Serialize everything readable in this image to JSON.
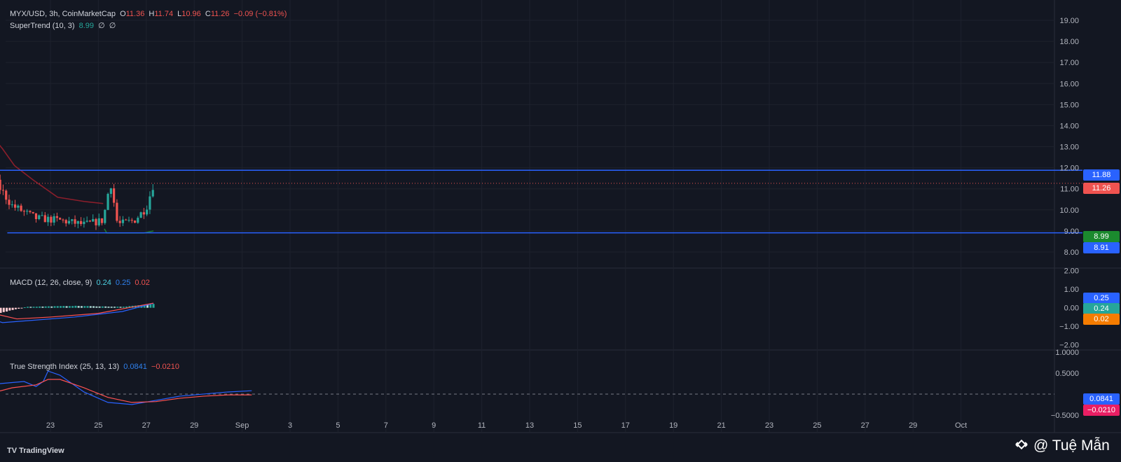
{
  "header": {
    "symbol": "MYX/USD, 3h, CoinMarketCap",
    "o_label": "O",
    "o": "11.36",
    "h_label": "H",
    "h": "11.74",
    "l_label": "L",
    "l": "10.96",
    "c_label": "C",
    "c": "11.26",
    "change": "−0.09 (−0.81%)"
  },
  "supertrend": {
    "label": "SuperTrend (10, 3)",
    "value": "8.99",
    "v2": "∅",
    "v3": "∅"
  },
  "macd": {
    "label": "MACD (12, 26, close, 9)",
    "v1": "0.24",
    "v2": "0.25",
    "v3": "0.02"
  },
  "tsi": {
    "label": "True Strength Index (25, 13, 13)",
    "v1": "0.0841",
    "v2": "−0.0210"
  },
  "tags": {
    "resistance": "11.88",
    "last": "11.26",
    "supertrend": "8.99",
    "support": "8.91",
    "macd_signal": "0.25",
    "macd_line": "0.24",
    "macd_hist": "0.02",
    "tsi_line": "0.0841",
    "tsi_signal": "−0.0210"
  },
  "colors": {
    "background": "#131722",
    "up": "#26a69a",
    "down": "#ef5350",
    "supertrend_up": "#1b7a2f",
    "supertrend_down": "#8b1e2b",
    "level": "#2962ff",
    "macd_line": "#2962ff",
    "signal_line": "#ff5252"
  },
  "branding": {
    "logo": "TradingView",
    "watermark": "@ Tuệ Mẫn"
  },
  "chart_data": [
    {
      "type": "candlestick",
      "title": "",
      "x": [
        "23",
        "25",
        "27",
        "29",
        "Sep",
        "3",
        "5",
        "7",
        "9",
        "11",
        "13",
        "15",
        "17",
        "19",
        "21",
        "23",
        "25",
        "27",
        "29",
        "Oct"
      ],
      "y_ticks": [
        "19.00",
        "18.00",
        "17.00",
        "16.00",
        "15.00",
        "14.00",
        "13.00",
        "12.00",
        "11.00",
        "10.00",
        "9.00",
        "8.00"
      ],
      "ylim": [
        7.3,
        19.5
      ],
      "close_path": [
        [
          9.2,
          7.5
        ],
        [
          9.8,
          17.2
        ],
        [
          10.4,
          15.5
        ],
        [
          11.0,
          18.6
        ],
        [
          11.4,
          12.4
        ],
        [
          11.7,
          11.6
        ],
        [
          12.3,
          18.2
        ],
        [
          13.0,
          14.2
        ],
        [
          14.0,
          11.0
        ],
        [
          15.0,
          10.6
        ],
        [
          16.0,
          10.8
        ],
        [
          16.8,
          11.2
        ],
        [
          17.1,
          14.5
        ],
        [
          17.6,
          17.9
        ],
        [
          18.0,
          16.5
        ],
        [
          18.6,
          17.6
        ],
        [
          19.2,
          14.8
        ],
        [
          19.9,
          12.2
        ],
        [
          20.6,
          11.5
        ],
        [
          21.4,
          10.2
        ],
        [
          22.4,
          9.6
        ],
        [
          23.4,
          9.5
        ],
        [
          24.4,
          9.3
        ],
        [
          25.2,
          9.5
        ],
        [
          25.5,
          11.4
        ],
        [
          25.8,
          9.3
        ],
        [
          26.5,
          9.5
        ],
        [
          27.0,
          10.1
        ],
        [
          27.3,
          11.26
        ]
      ],
      "supertrend": [
        {
          "dir": "up",
          "points": [
            [
              9.15,
              7.5
            ],
            [
              9.3,
              7.9
            ],
            [
              9.3,
              9.0
            ],
            [
              9.5,
              9.0
            ],
            [
              9.55,
              12.0
            ],
            [
              11.1,
              12.0
            ],
            [
              11.1,
              12.2
            ],
            [
              11.7,
              12.2
            ]
          ]
        },
        {
          "dir": "up",
          "points": [
            [
              12.2,
              11.6
            ],
            [
              12.35,
              11.6
            ],
            [
              12.45,
              11.0
            ],
            [
              12.6,
              11.0
            ],
            [
              12.7,
              11.2
            ],
            [
              14.0,
              11.2
            ]
          ]
        },
        {
          "dir": "down",
          "points": [
            [
              14.0,
              16.3
            ],
            [
              14.6,
              14.6
            ],
            [
              15.3,
              13.7
            ],
            [
              16.0,
              13.3
            ],
            [
              16.5,
              13.0
            ],
            [
              16.9,
              12.7
            ]
          ]
        },
        {
          "dir": "up",
          "points": [
            [
              16.75,
              10.0
            ],
            [
              16.95,
              12.0
            ],
            [
              17.3,
              13.0
            ],
            [
              17.6,
              14.6
            ],
            [
              18.2,
              14.7
            ],
            [
              18.8,
              14.7
            ]
          ]
        },
        {
          "dir": "down",
          "points": [
            [
              18.8,
              18.4
            ],
            [
              19.0,
              18.0
            ],
            [
              19.4,
              16.3
            ],
            [
              19.9,
              14.8
            ],
            [
              20.5,
              13.6
            ],
            [
              21.0,
              12.9
            ],
            [
              21.5,
              12.1
            ],
            [
              22.3,
              11.4
            ],
            [
              23.3,
              10.6
            ],
            [
              24.4,
              10.4
            ],
            [
              25.2,
              10.3
            ]
          ]
        },
        {
          "dir": "up",
          "points": [
            [
              25.25,
              9.1
            ],
            [
              25.35,
              8.9
            ],
            [
              26.9,
              8.9
            ],
            [
              27.3,
              9.0
            ]
          ]
        }
      ],
      "levels": [
        {
          "name": "resistance",
          "y": 11.88,
          "from": 20.2,
          "to": 31.0
        },
        {
          "name": "support",
          "y": 8.91,
          "from": 21.2,
          "to": 31.0
        }
      ],
      "last_price": 11.26
    },
    {
      "type": "line",
      "title": "MACD (12, 26, close, 9)",
      "y_ticks": [
        "2.00",
        "1.00",
        "0.00",
        "−1.00",
        "−2.00"
      ],
      "ylim": [
        -2.2,
        2.1
      ],
      "histogram_path": [
        [
          -1.2,
          0.02
        ],
        [
          7.5,
          0.05
        ],
        [
          8.5,
          0.3
        ],
        [
          9.0,
          1.0
        ],
        [
          9.4,
          0.85
        ],
        [
          10.0,
          0.3
        ],
        [
          10.5,
          -0.3
        ],
        [
          11.2,
          -0.6
        ],
        [
          11.6,
          -1.1
        ],
        [
          12.0,
          -0.7
        ],
        [
          12.4,
          -0.3
        ],
        [
          13.2,
          -0.5
        ],
        [
          14.0,
          -0.7
        ],
        [
          15.0,
          -0.5
        ],
        [
          16.0,
          0.05
        ],
        [
          16.8,
          0.3
        ],
        [
          17.4,
          0.9
        ],
        [
          18.0,
          0.7
        ],
        [
          18.6,
          0.1
        ],
        [
          19.4,
          -0.4
        ],
        [
          20.0,
          -0.5
        ],
        [
          21.0,
          -0.25
        ],
        [
          22.0,
          0.05
        ],
        [
          24.0,
          0.1
        ],
        [
          26.0,
          0.05
        ],
        [
          27.3,
          0.2
        ]
      ],
      "macd_line_path": [
        [
          -1.2,
          -0.02
        ],
        [
          7.5,
          0.0
        ],
        [
          8.5,
          0.6
        ],
        [
          9.0,
          1.8
        ],
        [
          9.3,
          2.3
        ],
        [
          10.8,
          2.3
        ],
        [
          11.4,
          0.9
        ],
        [
          12.3,
          0.4
        ],
        [
          13.2,
          -0.5
        ],
        [
          14.5,
          -0.6
        ],
        [
          15.6,
          -0.5
        ],
        [
          16.5,
          -0.1
        ],
        [
          17.0,
          0.8
        ],
        [
          17.8,
          1.3
        ],
        [
          18.5,
          1.1
        ],
        [
          19.2,
          0.0
        ],
        [
          20.0,
          -0.4
        ],
        [
          21.0,
          -0.8
        ],
        [
          22.0,
          -0.7
        ],
        [
          24.0,
          -0.5
        ],
        [
          26.0,
          -0.2
        ],
        [
          27.3,
          0.24
        ]
      ],
      "signal_line_path": [
        [
          -1.2,
          -0.02
        ],
        [
          7.5,
          0.0
        ],
        [
          8.5,
          0.3
        ],
        [
          9.3,
          1.4
        ],
        [
          10.0,
          2.3
        ],
        [
          11.0,
          2.3
        ],
        [
          11.8,
          1.2
        ],
        [
          12.6,
          0.8
        ],
        [
          13.6,
          0.0
        ],
        [
          15.0,
          -0.5
        ],
        [
          16.2,
          -0.35
        ],
        [
          17.0,
          0.2
        ],
        [
          18.0,
          1.0
        ],
        [
          18.8,
          1.0
        ],
        [
          19.6,
          0.3
        ],
        [
          20.6,
          -0.3
        ],
        [
          21.6,
          -0.6
        ],
        [
          23.0,
          -0.5
        ],
        [
          25.0,
          -0.3
        ],
        [
          27.3,
          0.25
        ]
      ]
    },
    {
      "type": "line",
      "title": "True Strength Index (25, 13, 13)",
      "y_ticks": [
        "1.0000",
        "0.5000",
        "−0.5000"
      ],
      "ylim": [
        -0.62,
        1.02
      ],
      "tsi_path": [
        [
          -1.2,
          -0.3
        ],
        [
          0.0,
          -0.25
        ],
        [
          1.0,
          -0.05
        ],
        [
          2.0,
          0.0
        ],
        [
          3.0,
          0.1
        ],
        [
          4.0,
          0.15
        ],
        [
          5.0,
          0.1
        ],
        [
          6.0,
          0.08
        ],
        [
          7.0,
          -0.05
        ],
        [
          8.0,
          -0.3
        ],
        [
          8.4,
          -0.38
        ],
        [
          9.0,
          -0.05
        ],
        [
          10.0,
          0.0
        ],
        [
          11.0,
          0.0
        ],
        [
          12.0,
          0.05
        ],
        [
          13.0,
          0.15
        ],
        [
          14.0,
          0.45
        ],
        [
          14.8,
          0.75
        ],
        [
          15.5,
          0.82
        ],
        [
          16.2,
          0.7
        ],
        [
          17.0,
          0.35
        ],
        [
          18.0,
          0.15
        ],
        [
          19.0,
          0.05
        ],
        [
          20.0,
          -0.1
        ],
        [
          21.0,
          -0.15
        ],
        [
          22.0,
          -0.1
        ],
        [
          22.5,
          0.0
        ],
        [
          23.5,
          0.25
        ],
        [
          24.5,
          0.3
        ],
        [
          25.0,
          0.18
        ],
        [
          25.3,
          0.3
        ],
        [
          25.5,
          0.55
        ],
        [
          26.0,
          0.45
        ],
        [
          26.5,
          0.25
        ],
        [
          27.0,
          0.05
        ],
        [
          28.0,
          -0.2
        ],
        [
          29.0,
          -0.25
        ],
        [
          30.0,
          -0.15
        ],
        [
          31.0,
          -0.05
        ],
        [
          32.0,
          0.0
        ],
        [
          33.0,
          0.05
        ],
        [
          34.0,
          0.08
        ]
      ],
      "signal_path": [
        [
          -1.2,
          -0.2
        ],
        [
          1.0,
          -0.1
        ],
        [
          3.0,
          0.05
        ],
        [
          5.0,
          0.12
        ],
        [
          7.0,
          0.1
        ],
        [
          8.0,
          0.0
        ],
        [
          9.0,
          -0.1
        ],
        [
          10.0,
          -0.05
        ],
        [
          12.0,
          0.0
        ],
        [
          13.0,
          0.05
        ],
        [
          14.0,
          0.25
        ],
        [
          15.0,
          0.62
        ],
        [
          16.0,
          0.75
        ],
        [
          17.0,
          0.55
        ],
        [
          18.0,
          0.3
        ],
        [
          19.0,
          0.12
        ],
        [
          20.0,
          0.0
        ],
        [
          21.0,
          -0.1
        ],
        [
          22.0,
          -0.12
        ],
        [
          23.0,
          0.0
        ],
        [
          24.0,
          0.15
        ],
        [
          25.0,
          0.22
        ],
        [
          25.5,
          0.35
        ],
        [
          26.0,
          0.35
        ],
        [
          27.0,
          0.15
        ],
        [
          28.0,
          -0.08
        ],
        [
          29.0,
          -0.2
        ],
        [
          30.0,
          -0.18
        ],
        [
          31.0,
          -0.1
        ],
        [
          32.0,
          -0.05
        ],
        [
          33.0,
          -0.02
        ],
        [
          34.0,
          -0.02
        ]
      ]
    }
  ]
}
